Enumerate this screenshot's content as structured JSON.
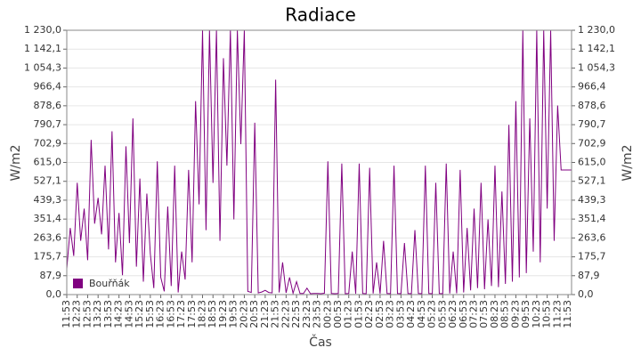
{
  "chart_data": {
    "type": "line",
    "title": "Radiace",
    "xlabel": "Čas",
    "ylabel": "W/m2",
    "x": [
      "11:53",
      "12:03",
      "12:13",
      "12:23",
      "12:33",
      "12:43",
      "12:53",
      "13:03",
      "13:13",
      "13:23",
      "13:33",
      "13:43",
      "13:53",
      "14:03",
      "14:13",
      "14:23",
      "14:33",
      "14:43",
      "14:53",
      "15:03",
      "15:13",
      "15:23",
      "15:33",
      "15:43",
      "15:53",
      "16:03",
      "16:13",
      "16:23",
      "16:33",
      "16:43",
      "16:53",
      "17:03",
      "17:13",
      "17:23",
      "17:33",
      "17:43",
      "17:53",
      "18:03",
      "18:13",
      "18:23",
      "18:33",
      "18:43",
      "18:53",
      "19:03",
      "19:13",
      "19:23",
      "19:33",
      "19:43",
      "19:53",
      "20:03",
      "20:13",
      "20:23",
      "20:33",
      "20:43",
      "20:53",
      "21:03",
      "21:13",
      "21:23",
      "21:33",
      "21:43",
      "21:53",
      "22:03",
      "22:13",
      "22:23",
      "22:33",
      "22:43",
      "22:53",
      "23:03",
      "23:13",
      "23:23",
      "23:33",
      "23:43",
      "23:53",
      "00:03",
      "00:13",
      "00:23",
      "00:33",
      "00:43",
      "00:53",
      "01:03",
      "01:13",
      "01:23",
      "01:33",
      "01:43",
      "01:53",
      "02:03",
      "02:13",
      "02:23",
      "02:33",
      "02:43",
      "02:53",
      "03:03",
      "03:13",
      "03:23",
      "03:33",
      "03:43",
      "03:53",
      "04:03",
      "04:13",
      "04:23",
      "04:33",
      "04:43",
      "04:53",
      "05:03",
      "05:13",
      "05:23",
      "05:33",
      "05:43",
      "05:53",
      "06:03",
      "06:13",
      "06:23",
      "06:33",
      "06:43",
      "06:53",
      "07:03",
      "07:13",
      "07:23",
      "07:33",
      "07:43",
      "07:53",
      "08:03",
      "08:13",
      "08:23",
      "08:33",
      "08:43",
      "08:53",
      "09:03",
      "09:13",
      "09:23",
      "09:33",
      "09:43",
      "09:53",
      "10:03",
      "10:13",
      "10:23",
      "10:33",
      "10:43",
      "10:53",
      "11:03",
      "11:13",
      "11:23",
      "11:33",
      "11:43",
      "11:53",
      "12:03"
    ],
    "series": [
      {
        "name": "Bouřňák",
        "color": "#800080",
        "values": [
          120,
          310,
          180,
          520,
          250,
          400,
          160,
          720,
          330,
          450,
          280,
          600,
          210,
          760,
          150,
          380,
          90,
          690,
          240,
          820,
          130,
          540,
          60,
          470,
          190,
          30,
          620,
          80,
          15,
          410,
          40,
          600,
          10,
          200,
          70,
          580,
          150,
          900,
          420,
          1230,
          300,
          1230,
          520,
          1230,
          250,
          1100,
          600,
          1230,
          350,
          1230,
          700,
          1230,
          15,
          10,
          800,
          8,
          12,
          20,
          10,
          8,
          1000,
          10,
          150,
          8,
          80,
          6,
          60,
          5,
          5,
          30,
          4,
          5,
          5,
          4,
          6,
          620,
          5,
          4,
          5,
          610,
          4,
          5,
          200,
          4,
          610,
          5,
          4,
          590,
          5,
          150,
          4,
          250,
          5,
          4,
          600,
          5,
          4,
          240,
          5,
          4,
          300,
          5,
          4,
          600,
          5,
          4,
          520,
          5,
          4,
          610,
          5,
          200,
          6,
          580,
          10,
          310,
          20,
          400,
          30,
          520,
          25,
          350,
          40,
          600,
          35,
          480,
          50,
          790,
          60,
          900,
          80,
          1230,
          100,
          820,
          200,
          1230,
          150,
          1230,
          400,
          1230,
          250,
          880,
          580,
          580,
          580,
          580
        ]
      }
    ],
    "xticks": [
      "11:53",
      "12:23",
      "12:53",
      "13:23",
      "13:53",
      "14:23",
      "14:53",
      "15:23",
      "15:53",
      "16:23",
      "16:53",
      "17:23",
      "17:53",
      "18:23",
      "18:53",
      "19:23",
      "19:53",
      "20:23",
      "20:53",
      "21:23",
      "21:53",
      "22:23",
      "22:53",
      "23:23",
      "23:53",
      "00:23",
      "00:53",
      "01:23",
      "01:53",
      "02:23",
      "02:53",
      "03:23",
      "03:53",
      "04:23",
      "04:53",
      "05:23",
      "05:53",
      "06:23",
      "06:53",
      "07:23",
      "07:53",
      "08:23",
      "08:53",
      "09:23",
      "09:53",
      "10:23",
      "10:53",
      "11:23",
      "11:53"
    ],
    "ylim": [
      0,
      1230
    ],
    "yticks": [
      {
        "value": 0,
        "label": "0,0"
      },
      {
        "value": 87.9,
        "label": "87,9"
      },
      {
        "value": 175.7,
        "label": "175,7"
      },
      {
        "value": 263.6,
        "label": "263,6"
      },
      {
        "value": 351.4,
        "label": "351,4"
      },
      {
        "value": 439.3,
        "label": "439,3"
      },
      {
        "value": 527.1,
        "label": "527,1"
      },
      {
        "value": 615.0,
        "label": "615,0"
      },
      {
        "value": 702.9,
        "label": "702,9"
      },
      {
        "value": 790.7,
        "label": "790,7"
      },
      {
        "value": 878.6,
        "label": "878,6"
      },
      {
        "value": 966.4,
        "label": "966,4"
      },
      {
        "value": 1054.3,
        "label": "1 054,3"
      },
      {
        "value": 1142.1,
        "label": "1 142,1"
      },
      {
        "value": 1230,
        "label": "1 230,0"
      }
    ],
    "grid": true,
    "legend": "lower left"
  }
}
